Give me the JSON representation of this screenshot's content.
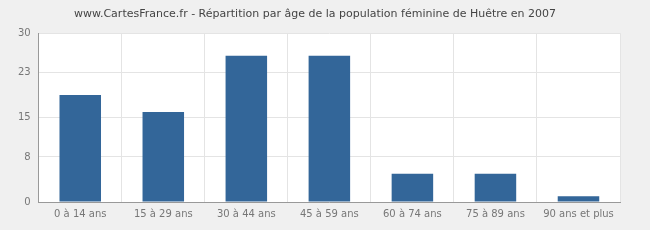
{
  "chart_data": {
    "type": "bar",
    "title": "www.CartesFrance.fr - Répartition par âge de la population féminine de Huêtre en 2007",
    "categories": [
      "0 à 14 ans",
      "15 à 29 ans",
      "30 à 44 ans",
      "45 à 59 ans",
      "60 à 74 ans",
      "75 à 89 ans",
      "90 ans et plus"
    ],
    "values": [
      19,
      16,
      26,
      26,
      5,
      5,
      1
    ],
    "color": "#336699",
    "ylim": [
      0,
      30
    ],
    "yticks": [
      0,
      8,
      15,
      23,
      30
    ],
    "grid": true
  }
}
